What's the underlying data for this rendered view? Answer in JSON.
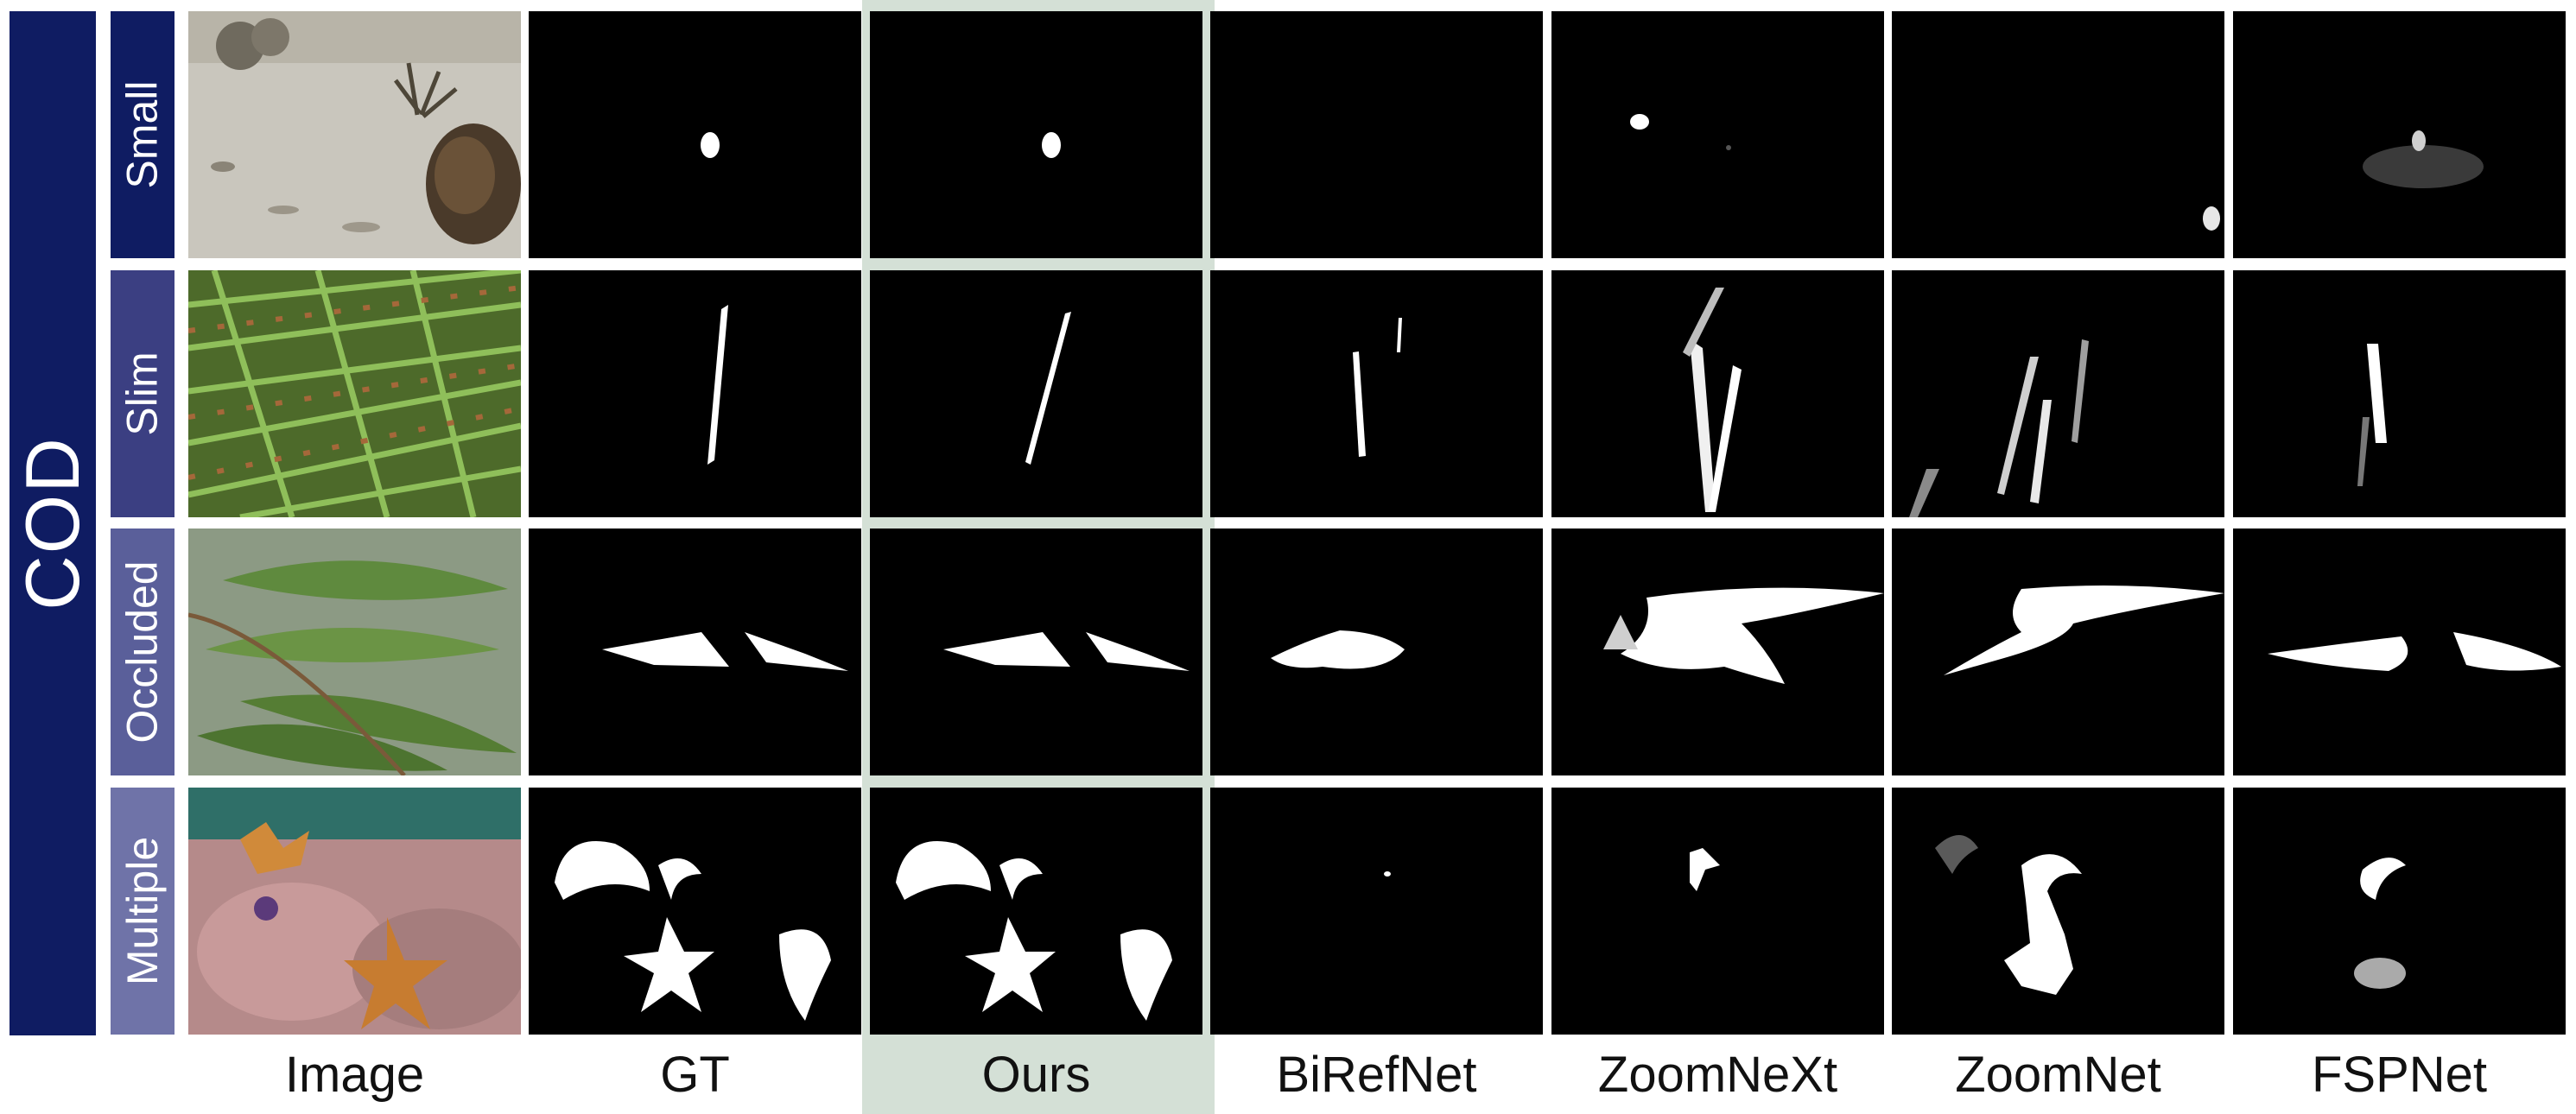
{
  "side_label": "COD",
  "row_labels": [
    "Small",
    "Slim",
    "Occluded",
    "Multiple"
  ],
  "column_labels": [
    "Image",
    "GT",
    "Ours",
    "BiRefNet",
    "ZoomNeXt",
    "ZoomNet",
    "FSPNet"
  ],
  "highlight_column": "Ours",
  "colors": {
    "side_label_bg": "#0f1c62",
    "row_label_bgs": [
      "#0f1c62",
      "#3b3f82",
      "#5a5f9a",
      "#6f73a8"
    ],
    "highlight_bg": "#d4e0d6",
    "mask_bg": "#000000",
    "mask_fg": "#ffffff"
  }
}
